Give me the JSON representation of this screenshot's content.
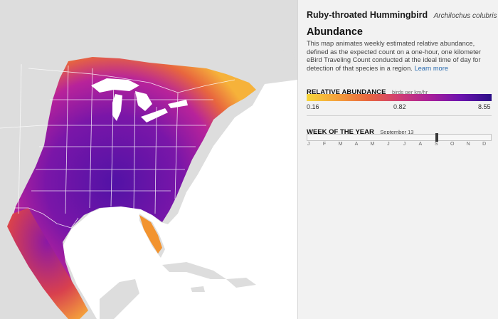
{
  "species": {
    "common_name": "Ruby-throated Hummingbird",
    "scientific_name": "Archilochus colubris"
  },
  "section": {
    "title": "Abundance",
    "description": "This map animates weekly estimated relative abundance, defined as the expected count on a one-hour, one kilometer eBird Traveling Count conducted at the ideal time of day for detection of that species in a region.",
    "learn_more": "Learn more"
  },
  "legend": {
    "title": "RELATIVE ABUNDANCE",
    "units": "birds per km/hr",
    "min": "0.16",
    "mid": "0.82",
    "max": "8.55",
    "colors": [
      "#f6d63a",
      "#f4a03c",
      "#e8663e",
      "#cf3d73",
      "#a81f9a",
      "#6c14ae",
      "#2b0f86"
    ]
  },
  "week": {
    "title": "WEEK OF THE YEAR",
    "date": "September 13",
    "position": 0.705,
    "months": [
      "J",
      "F",
      "M",
      "A",
      "M",
      "J",
      "J",
      "A",
      "S",
      "O",
      "N",
      "D"
    ]
  },
  "map": {
    "land_color": "#dddddd",
    "border_color": "#ffffff",
    "water_color": "#ffffff"
  }
}
